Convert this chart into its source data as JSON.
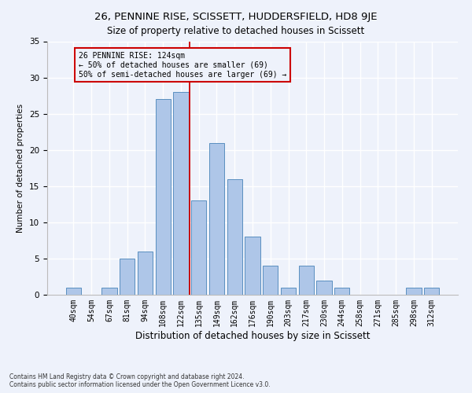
{
  "title": "26, PENNINE RISE, SCISSETT, HUDDERSFIELD, HD8 9JE",
  "subtitle": "Size of property relative to detached houses in Scissett",
  "xlabel": "Distribution of detached houses by size in Scissett",
  "ylabel": "Number of detached properties",
  "bar_labels": [
    "40sqm",
    "54sqm",
    "67sqm",
    "81sqm",
    "94sqm",
    "108sqm",
    "122sqm",
    "135sqm",
    "149sqm",
    "162sqm",
    "176sqm",
    "190sqm",
    "203sqm",
    "217sqm",
    "230sqm",
    "244sqm",
    "258sqm",
    "271sqm",
    "285sqm",
    "298sqm",
    "312sqm"
  ],
  "bar_values": [
    1,
    0,
    1,
    5,
    6,
    27,
    28,
    13,
    21,
    16,
    8,
    4,
    1,
    4,
    2,
    1,
    0,
    0,
    0,
    1,
    1
  ],
  "bar_color": "#aec6e8",
  "bar_edge_color": "#5a8fc0",
  "vline_x": 6.5,
  "annotation_title": "26 PENNINE RISE: 124sqm",
  "annotation_line1": "← 50% of detached houses are smaller (69)",
  "annotation_line2": "50% of semi-detached houses are larger (69) →",
  "footnote1": "Contains HM Land Registry data © Crown copyright and database right 2024.",
  "footnote2": "Contains public sector information licensed under the Open Government Licence v3.0.",
  "ylim": [
    0,
    35
  ],
  "yticks": [
    0,
    5,
    10,
    15,
    20,
    25,
    30,
    35
  ],
  "bg_color": "#eef2fb",
  "grid_color": "#ffffff",
  "vline_color": "#cc0000",
  "annotation_box_color": "#cc0000",
  "title_fontsize": 9.5,
  "subtitle_fontsize": 8.5,
  "ylabel_fontsize": 7.5,
  "xlabel_fontsize": 8.5,
  "tick_fontsize": 7,
  "ytick_fontsize": 7.5,
  "annot_fontsize": 7,
  "footnote_fontsize": 5.5
}
